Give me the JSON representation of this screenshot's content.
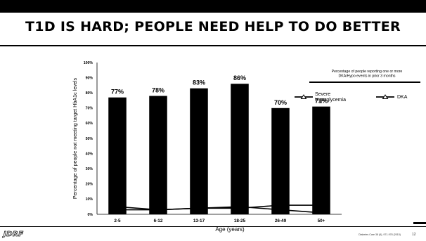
{
  "slide": {
    "title": "T1D IS HARD; PEOPLE NEED HELP TO DO BETTER",
    "logo_text": "JDRF",
    "citation": "Diabetes Care 38 (6), 971-978 (2015)",
    "page_number": "12"
  },
  "colors": {
    "bar": "#000000",
    "line": "#000000",
    "background": "#ffffff",
    "text": "#000000"
  },
  "chart_data": {
    "type": "bar",
    "title": "",
    "xlabel": "Age (years)",
    "ylabel": "Percentage of people not meeting target HbA1c levels",
    "categories": [
      "2-5",
      "6-12",
      "13-17",
      "18-25",
      "26-49",
      "50+"
    ],
    "ylim": [
      0,
      100
    ],
    "yticks": [
      0,
      10,
      20,
      30,
      40,
      50,
      60,
      70,
      80,
      90,
      100
    ],
    "ytick_suffix": "%",
    "grid": false,
    "series": [
      {
        "type": "bar",
        "values": [
          77,
          78,
          83,
          86,
          70,
          71
        ],
        "data_labels": [
          "77%",
          "78%",
          "83%",
          "86%",
          "70%",
          "71%"
        ]
      }
    ],
    "line_series": [
      {
        "name": "Severe Hypoglycemia",
        "marker": "triangle",
        "values": [
          5,
          3,
          4,
          5,
          3,
          1
        ]
      },
      {
        "name": "DKA",
        "marker": "triangle",
        "values": [
          3,
          3,
          4,
          4,
          6,
          6
        ]
      }
    ],
    "legend": {
      "title": "Percentage of people reporting one or more DKA/Hypo events in prior 3 months",
      "placement": "top-right"
    }
  }
}
